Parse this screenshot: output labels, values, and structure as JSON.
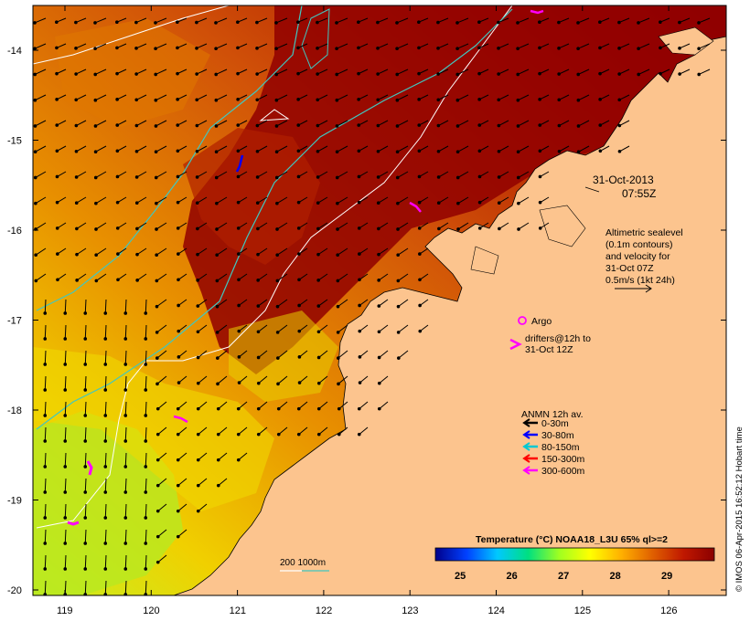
{
  "map": {
    "y_ticks": [
      "-14",
      "-15",
      "-16",
      "-17",
      "-18",
      "-19",
      "-20"
    ],
    "x_ticks": [
      "119",
      "120",
      "121",
      "122",
      "123",
      "124",
      "125",
      "126"
    ],
    "date_line1": "31-Oct-2013",
    "date_line2": "07:55Z",
    "altimetry": [
      "Altimetric sealevel",
      "(0.1m contours)",
      "and velocity for",
      "31-Oct 07Z",
      "0.5m/s (1kt 24h)"
    ],
    "argo_label": "Argo",
    "drifters": [
      "drifters@12h to",
      "31-Oct 12Z"
    ],
    "anmn_title": "ANMN 12h av.",
    "anmn_items": [
      {
        "label": "0-30m",
        "color": "#000000"
      },
      {
        "label": "30-80m",
        "color": "#0000ff"
      },
      {
        "label": "80-150m",
        "color": "#00c8d2"
      },
      {
        "label": "150-300m",
        "color": "#ff0000"
      },
      {
        "label": "300-600m",
        "color": "#ff00ff"
      }
    ],
    "colorbar_title": "Temperature (°C) NOAA18_L3U 65% ql>=2",
    "colorbar_ticks": [
      "25",
      "26",
      "27",
      "28",
      "29"
    ],
    "colorbar_stops": [
      "#00008b",
      "#0040ff",
      "#00c8ff",
      "#00e080",
      "#a0ff20",
      "#ffff00",
      "#ffb000",
      "#e06000",
      "#c01800",
      "#8b0000"
    ],
    "isobath_label": "200  1000m",
    "credit": "© IMOS 06-Apr-2015 16:52:12 Hobart time",
    "colors": {
      "land": "#fcc48e",
      "contour_200": "#ffffff",
      "contour_1000": "#40c8c0"
    }
  }
}
